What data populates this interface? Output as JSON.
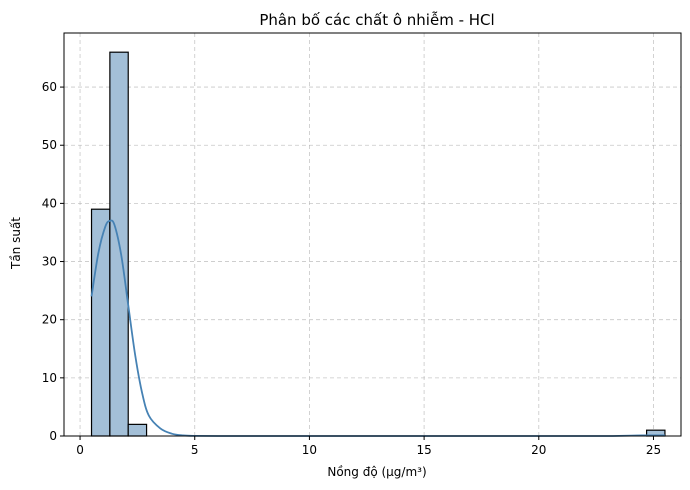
{
  "chart_data": {
    "type": "histogram",
    "title": "Phân bố các chất ô nhiễm - HCl",
    "xlabel": "Nồng độ (µg/m³)",
    "ylabel": "Tần suất",
    "xlim": [
      -0.7,
      26.2
    ],
    "ylim": [
      0,
      69.3
    ],
    "xticks": [
      0,
      5,
      10,
      15,
      20,
      25
    ],
    "yticks": [
      0,
      10,
      20,
      30,
      40,
      50,
      60
    ],
    "grid": true,
    "bin_width": 0.8,
    "bins": [
      {
        "start": 0.5,
        "count": 39
      },
      {
        "start": 1.3,
        "count": 66
      },
      {
        "start": 2.1,
        "count": 2
      },
      {
        "start": 2.9,
        "count": 0
      },
      {
        "start": 24.7,
        "count": 1
      }
    ],
    "kde": {
      "x": [
        0.5,
        0.8,
        1.1,
        1.3,
        1.5,
        1.8,
        2.1,
        2.4,
        2.7,
        3.0,
        3.5,
        4.0,
        4.5,
        5.0,
        6.0,
        8.0,
        12.0,
        16.0,
        20.0,
        23.0,
        24.5,
        25.5
      ],
      "y": [
        24,
        31.5,
        36,
        37,
        36.3,
        31,
        22.5,
        14,
        7.5,
        3.5,
        1.3,
        0.4,
        0.1,
        0.02,
        0,
        0,
        0,
        0,
        0,
        0,
        0.1,
        0.1
      ]
    },
    "colors": {
      "bar_fill": "#a3bfd7",
      "bar_edge": "#000000",
      "kde_line": "#4682b4"
    }
  }
}
